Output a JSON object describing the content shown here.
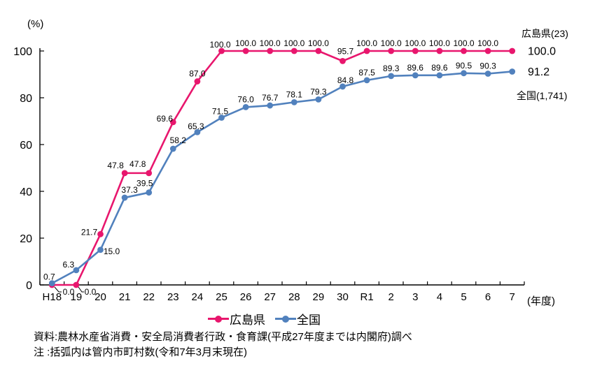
{
  "chart_data": {
    "type": "line",
    "y_unit_label": "(%)",
    "x_unit_label": "(年度)",
    "ylim": [
      0,
      100
    ],
    "yticks": [
      0,
      20,
      40,
      60,
      80,
      100
    ],
    "grid": false,
    "legend_position": "bottom",
    "categories": [
      "H18",
      "19",
      "20",
      "21",
      "22",
      "23",
      "24",
      "25",
      "26",
      "27",
      "28",
      "29",
      "30",
      "R1",
      "2",
      "3",
      "4",
      "5",
      "6",
      "7"
    ],
    "series": [
      {
        "name": "広島県",
        "annotation": "広島県(23)",
        "color": "#e8166d",
        "values": [
          0.0,
          0.0,
          21.7,
          47.8,
          47.8,
          69.6,
          87.0,
          100.0,
          100.0,
          100.0,
          100.0,
          100.0,
          95.7,
          100.0,
          100.0,
          100.0,
          100.0,
          100.0,
          100.0,
          100.0
        ]
      },
      {
        "name": "全国",
        "annotation": "全国(1,741)",
        "color": "#5181bd",
        "values": [
          0.7,
          6.3,
          15.0,
          37.3,
          39.5,
          58.2,
          65.3,
          71.5,
          76.0,
          76.7,
          78.1,
          79.3,
          84.8,
          87.5,
          89.3,
          89.6,
          89.6,
          90.5,
          90.3,
          91.2
        ]
      }
    ]
  },
  "notes": {
    "source_line": "資料:農林水産省消費・安全局消費者行政・食育課(平成27年度までは内閣府)調べ",
    "note_line": "注 :括弧内は管内市町村数(令和7年3月末現在)"
  }
}
